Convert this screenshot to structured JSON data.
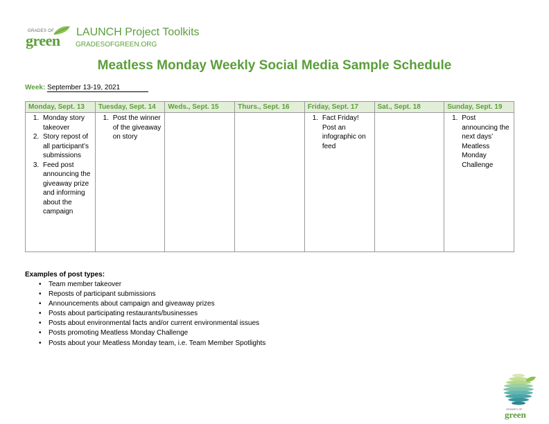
{
  "header": {
    "logo_small": "GRADES OF",
    "logo_large": "green",
    "toolkit_title": "LAUNCH Project Toolkits",
    "toolkit_url": "GRADESOFGREEN.ORG"
  },
  "title": "Meatless Monday Weekly Social Media Sample Schedule",
  "week": {
    "label": "Week:",
    "value": "September 13-19, 2021"
  },
  "schedule": {
    "days": [
      {
        "header": "Monday, Sept. 13",
        "items": [
          "Monday story takeover",
          "Story repost of all participant’s submissions",
          "Feed post announcing the giveaway prize and informing about the campaign"
        ]
      },
      {
        "header": "Tuesday, Sept. 14",
        "items": [
          "Post the winner of the giveaway on story"
        ]
      },
      {
        "header": "Weds., Sept. 15",
        "items": []
      },
      {
        "header": "Thurs., Sept. 16",
        "items": []
      },
      {
        "header": "Friday, Sept. 17",
        "items": [
          "Fact Friday! Post an infographic on feed"
        ]
      },
      {
        "header": "Sat., Sept. 18",
        "items": []
      },
      {
        "header": "Sunday, Sept. 19",
        "items": [
          "Post announcing the next days’ Meatless Monday Challenge"
        ]
      }
    ]
  },
  "examples": {
    "title": "Examples of post types:",
    "bullet": "•",
    "items": [
      "Team member takeover",
      "Reposts of participant submissions",
      "Announcements about campaign and giveaway prizes",
      "Posts about participating restaurants/businesses",
      "Posts about environmental facts and/or current environmental issues",
      "Posts promoting Meatless Monday Challenge",
      "Posts about your Meatless Monday team, i.e. Team Member Spotlights"
    ]
  },
  "footer": {
    "logo_small": "GRADES OF",
    "logo_large": "green"
  },
  "colors": {
    "brand_green": "#5b9e3a",
    "header_fill": "#e3eed9",
    "border": "#999999"
  }
}
